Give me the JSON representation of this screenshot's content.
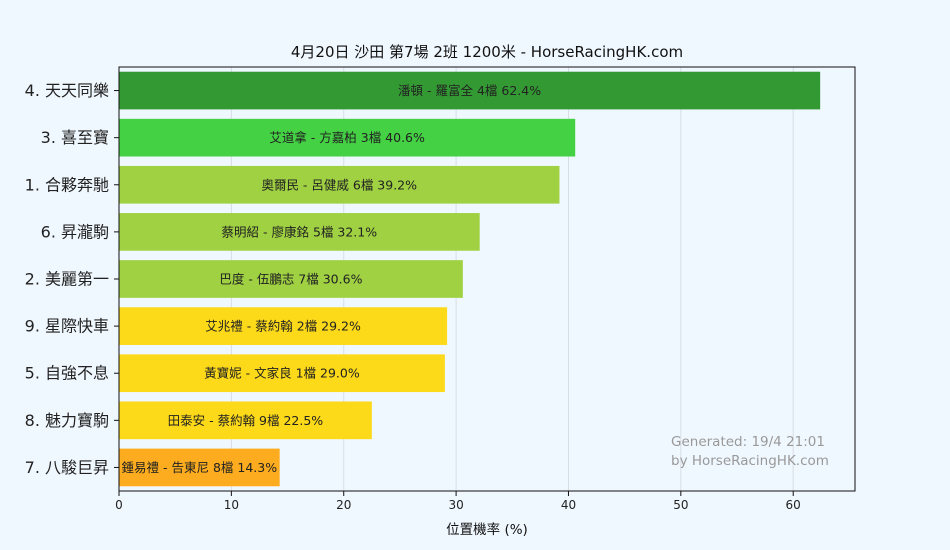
{
  "chart_data": {
    "type": "bar",
    "orientation": "horizontal",
    "title": "4月20日  沙田  第7場  2班  1200米 - HorseRacingHK.com",
    "xlabel": "位置機率 (%)",
    "ylabel": "",
    "xlim": [
      0,
      65.5
    ],
    "xticks": [
      "0",
      "10",
      "20",
      "30",
      "40",
      "50",
      "60"
    ],
    "grid": "vertical",
    "categories": [
      "4. 天天同樂",
      "3. 喜至寶",
      "1. 合夥奔馳",
      "6. 昇瀧駒",
      "2. 美麗第一",
      "9. 星際快車",
      "5. 自強不息",
      "8. 魅力寶駒",
      "7. 八駿巨昇"
    ],
    "values": [
      62.4,
      40.6,
      39.2,
      32.1,
      30.6,
      29.2,
      29.0,
      22.5,
      14.3
    ],
    "bar_labels": [
      "潘頓 - 羅富全 4檔  62.4%",
      "艾道拿 - 方嘉柏 3檔  40.6%",
      "奧爾民 - 呂健威 6檔  39.2%",
      "蔡明紹 - 廖康銘 5檔  32.1%",
      "巴度 - 伍鵬志 7檔  30.6%",
      "艾兆禮 - 蔡約翰 2檔  29.2%",
      "黃寶妮 - 文家良 1檔  29.0%",
      "田泰安 - 蔡約翰 9檔  22.5%",
      "鍾易禮 - 告東尼 8檔  14.3%"
    ],
    "colors": [
      "#339933",
      "#44d144",
      "#9fd142",
      "#9fd142",
      "#9fd142",
      "#fcd919",
      "#fcd919",
      "#fcd919",
      "#fcac1e"
    ],
    "annotation": [
      "Generated: 19/4 21:01",
      "by HorseRacingHK.com"
    ]
  }
}
